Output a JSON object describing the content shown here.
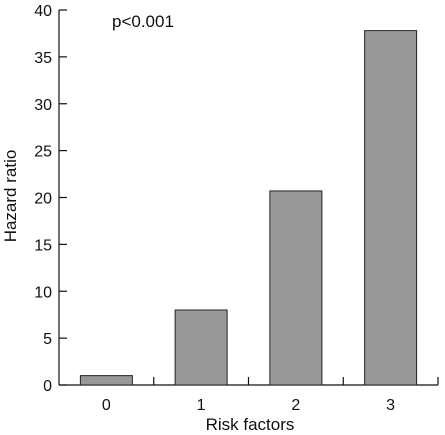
{
  "chart_data": {
    "type": "bar",
    "title": "",
    "xlabel": "Risk factors",
    "ylabel": "Hazard ratio",
    "annotation": "p<0.001",
    "categories": [
      "0",
      "1",
      "2",
      "3"
    ],
    "values": [
      1,
      8,
      20.7,
      37.8
    ],
    "ylim": [
      0,
      40
    ],
    "yticks": [
      0,
      5,
      10,
      15,
      20,
      25,
      30,
      35,
      40
    ],
    "grid": false,
    "legend": "none",
    "bar_color": "#999999",
    "bar_edge_color": "#222222"
  }
}
